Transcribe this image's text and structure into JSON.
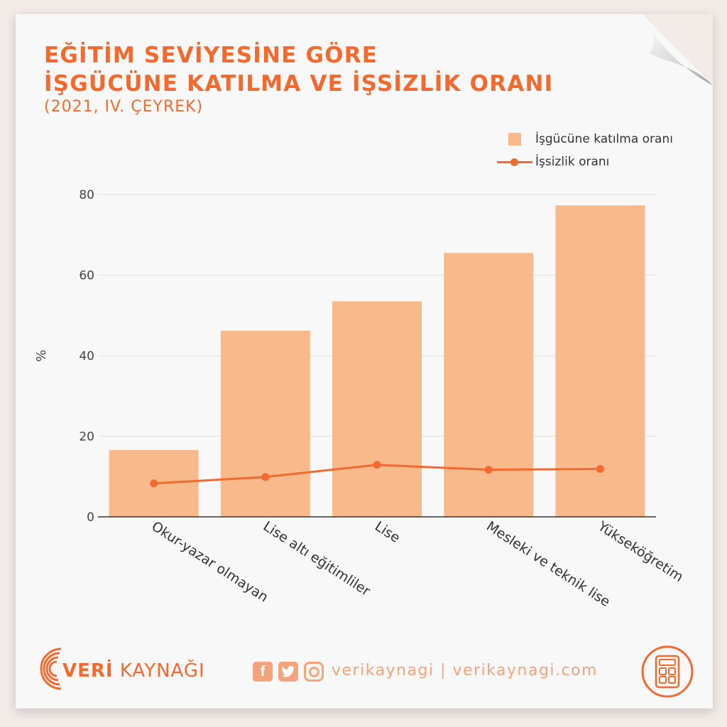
{
  "header": {
    "title_line1": "EĞİTİM SEVİYESİNE GÖRE",
    "title_line2": "İŞGÜCÜNE KATILMA VE İŞSİZLİK ORANI",
    "subtitle": "(2021, IV. ÇEYREK)"
  },
  "legend": {
    "bar_label": "İşgücüne katılma oranı",
    "line_label": "İşsizlik oranı"
  },
  "colors": {
    "bar": "#f8b98b",
    "line": "#f26a2e",
    "accent": "#f26a2e"
  },
  "chart_data": {
    "type": "bar",
    "categories": [
      "Okur-yazar olmayan",
      "Lise altı eğitimliler",
      "Lise",
      "Mesleki ve teknik lise",
      "Yükseköğretim"
    ],
    "series": [
      {
        "name": "İşgücüne katılma oranı",
        "type": "bar",
        "values": [
          16.6,
          46.2,
          53.5,
          65.5,
          77.3
        ]
      },
      {
        "name": "İşsizlik oranı",
        "type": "line",
        "values": [
          8.3,
          9.9,
          12.9,
          11.7,
          11.9
        ]
      }
    ],
    "ylabel": "%",
    "xlabel": "",
    "ylim": [
      0,
      80
    ],
    "yticks": [
      0,
      20,
      40,
      60,
      80
    ],
    "grid": true,
    "legend_position": "top-right"
  },
  "footer": {
    "brand_bold": "VERİ",
    "brand_rest": " KAYNAĞI",
    "social_icons": [
      "facebook-icon",
      "twitter-icon",
      "instagram-icon"
    ],
    "handle": "verikaynagi | verikaynagi.com"
  }
}
